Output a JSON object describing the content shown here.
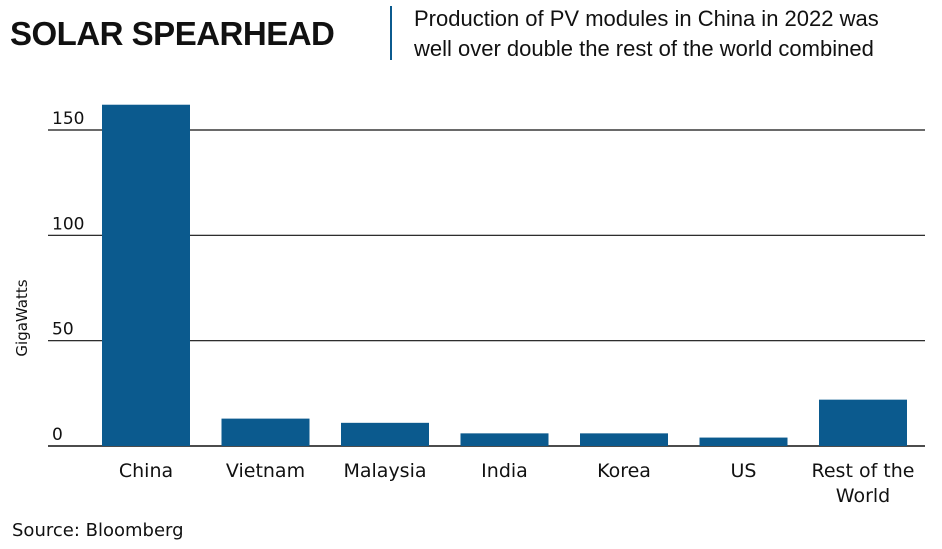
{
  "header": {
    "title": "SOLAR SPEARHEAD",
    "subtitle_line1": "Production of PV modules in China in 2022 was",
    "subtitle_line2": "well over double the rest of the world combined"
  },
  "source": "Source: Bloomberg",
  "colors": {
    "bar": "#0B5A8E",
    "divider": "#0B5A8E",
    "grid": "#111111"
  },
  "chart_data": {
    "type": "bar",
    "title": "SOLAR SPEARHEAD",
    "subtitle": "Production of PV modules in China in 2022 was well over double the rest of the world combined",
    "ylabel": "GigaWatts",
    "xlabel": "",
    "ylim": [
      0,
      150
    ],
    "yticks": [
      0,
      50,
      100,
      150
    ],
    "grid": true,
    "categories": [
      [
        "China"
      ],
      [
        "Vietnam"
      ],
      [
        "Malaysia"
      ],
      [
        "India"
      ],
      [
        "Korea"
      ],
      [
        "US"
      ],
      [
        "Rest of the",
        "World"
      ]
    ],
    "values": [
      162,
      13,
      11,
      6,
      6,
      4,
      22
    ]
  }
}
